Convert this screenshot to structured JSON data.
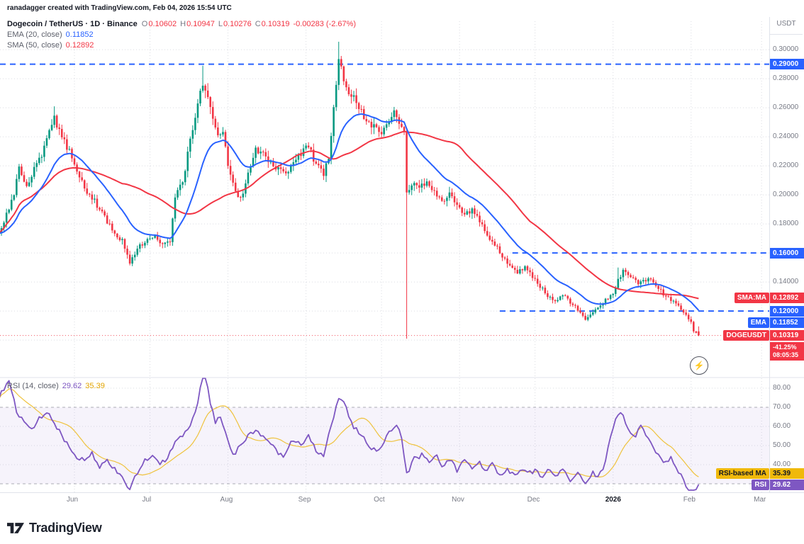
{
  "attribution": "ranadagger created with TradingView.com, Feb 04, 2026 15:54 UTC",
  "legend": {
    "title": "Dogecoin / TetherUS · 1D · Binance",
    "o_label": "O",
    "o": "0.10602",
    "h_label": "H",
    "h": "0.10947",
    "l_label": "L",
    "l": "0.10276",
    "c_label": "C",
    "c": "0.10319",
    "change": "-0.00283 (-2.67%)",
    "ema_label": "EMA (20, close)",
    "ema_value": "0.11852",
    "sma_label": "SMA (50, close)",
    "sma_value": "0.12892",
    "rsi_label": "RSI (14, close)",
    "rsi_value": "29.62",
    "rsi_ma_value": "35.39"
  },
  "axis": {
    "currency": "USDT",
    "price_ticks": [
      {
        "value": 0.3,
        "label": "0.30000"
      },
      {
        "value": 0.28,
        "label": "0.28000"
      },
      {
        "value": 0.26,
        "label": "0.26000"
      },
      {
        "value": 0.24,
        "label": "0.24000"
      },
      {
        "value": 0.22,
        "label": "0.22000"
      },
      {
        "value": 0.2,
        "label": "0.20000"
      },
      {
        "value": 0.18,
        "label": "0.18000"
      },
      {
        "value": 0.14,
        "label": "0.14000"
      }
    ],
    "rsi_ticks": [
      {
        "value": 80,
        "label": "80.00"
      },
      {
        "value": 70,
        "label": "70.00"
      },
      {
        "value": 60,
        "label": "60.00"
      },
      {
        "value": 50,
        "label": "50.00"
      },
      {
        "value": 40,
        "label": "40.00"
      }
    ],
    "badges": [
      {
        "label": "",
        "value": "0.29000",
        "price": 0.29,
        "color": "#2962FF"
      },
      {
        "label": "",
        "value": "0.16000",
        "price": 0.16,
        "color": "#2962FF"
      },
      {
        "label": "SMA:MA",
        "value": "0.12892",
        "price": 0.12892,
        "color": "#F23645"
      },
      {
        "label": "",
        "value": "0.12000",
        "price": 0.12,
        "color": "#2962FF"
      },
      {
        "label": "EMA",
        "value": "0.11852",
        "price": 0.11852,
        "color": "#2962FF"
      },
      {
        "label": "DOGEUSDT",
        "value": "0.10319",
        "price": 0.10319,
        "color": "#F23645"
      }
    ],
    "countdown": {
      "lines": [
        "-41.25%",
        "08:05:35"
      ],
      "color": "#F23645"
    },
    "rsi_badges": [
      {
        "label": "RSI-based MA",
        "value": "35.39",
        "rsi": 35.39,
        "color": "#F0B90B",
        "text": "#131722"
      },
      {
        "label": "RSI",
        "value": "29.62",
        "rsi": 29.62,
        "color": "#7E57C2",
        "text": "#ffffff"
      }
    ]
  },
  "time_axis": {
    "months": [
      {
        "label": "Jun",
        "day": 30
      },
      {
        "label": "Jul",
        "day": 60
      },
      {
        "label": "Aug",
        "day": 91
      },
      {
        "label": "Sep",
        "day": 122
      },
      {
        "label": "Oct",
        "day": 152
      },
      {
        "label": "Nov",
        "day": 183
      },
      {
        "label": "Dec",
        "day": 213
      },
      {
        "label": "2026",
        "day": 244,
        "emphasis": true
      },
      {
        "label": "Feb",
        "day": 275
      },
      {
        "label": "Mar",
        "day": 303
      }
    ]
  },
  "logo": {
    "text": "TradingView"
  },
  "quick_button": {
    "icon": "lightning-icon",
    "glyph": "⚡"
  },
  "colors": {
    "up": "#089981",
    "down": "#F23645",
    "ema": "#2962FF",
    "sma": "#F23645",
    "rsi": "#7E57C2",
    "rsi_ma": "#EFC23C",
    "level": "#2962FF",
    "grid": "#b6bac6",
    "band": "#7E57C2",
    "last_price": "#F23645"
  },
  "chart_data": {
    "type": "candlestick",
    "symbol": "DOGEUSDT",
    "exchange": "Binance",
    "timeframe": "1D",
    "title": "Dogecoin / TetherUS · 1D · Binance",
    "price_axis_range": [
      0.08,
      0.32
    ],
    "rsi_axis_range": [
      20,
      90
    ],
    "last": {
      "open": 0.10602,
      "high": 0.10947,
      "low": 0.10276,
      "close": 0.10319,
      "change": -0.00283,
      "change_pct": -2.67
    },
    "indicators": {
      "ema20": 0.11852,
      "sma50": 0.12892,
      "rsi14": 29.62,
      "rsi_based_ma": 35.39
    },
    "levels": [
      {
        "price": 0.29,
        "from_day": 0
      },
      {
        "price": 0.16,
        "from_day": 204
      },
      {
        "price": 0.12,
        "from_day": 199
      }
    ],
    "rsi_bands": [
      70,
      30
    ],
    "price_keyframes": [
      [
        0,
        0.172
      ],
      [
        3,
        0.186
      ],
      [
        6,
        0.2
      ],
      [
        8,
        0.218
      ],
      [
        11,
        0.206
      ],
      [
        14,
        0.218
      ],
      [
        17,
        0.228
      ],
      [
        20,
        0.246
      ],
      [
        22,
        0.253
      ],
      [
        25,
        0.24
      ],
      [
        28,
        0.23
      ],
      [
        31,
        0.218
      ],
      [
        34,
        0.204
      ],
      [
        37,
        0.198
      ],
      [
        41,
        0.188
      ],
      [
        45,
        0.176
      ],
      [
        49,
        0.168
      ],
      [
        52,
        0.154
      ],
      [
        55,
        0.163
      ],
      [
        58,
        0.168
      ],
      [
        62,
        0.172
      ],
      [
        65,
        0.166
      ],
      [
        68,
        0.168
      ],
      [
        70,
        0.199
      ],
      [
        73,
        0.209
      ],
      [
        76,
        0.238
      ],
      [
        79,
        0.262
      ],
      [
        81,
        0.277
      ],
      [
        83,
        0.266
      ],
      [
        85,
        0.252
      ],
      [
        87,
        0.239
      ],
      [
        89,
        0.245
      ],
      [
        91,
        0.221
      ],
      [
        94,
        0.201
      ],
      [
        96,
        0.197
      ],
      [
        99,
        0.214
      ],
      [
        102,
        0.231
      ],
      [
        105,
        0.228
      ],
      [
        108,
        0.222
      ],
      [
        111,
        0.218
      ],
      [
        114,
        0.214
      ],
      [
        117,
        0.224
      ],
      [
        120,
        0.229
      ],
      [
        123,
        0.233
      ],
      [
        126,
        0.221
      ],
      [
        129,
        0.214
      ],
      [
        131,
        0.226
      ],
      [
        133,
        0.258
      ],
      [
        135,
        0.292
      ],
      [
        137,
        0.281
      ],
      [
        139,
        0.272
      ],
      [
        141,
        0.266
      ],
      [
        144,
        0.257
      ],
      [
        147,
        0.25
      ],
      [
        150,
        0.246
      ],
      [
        152,
        0.244
      ],
      [
        155,
        0.25
      ],
      [
        157,
        0.257
      ],
      [
        159,
        0.251
      ],
      [
        161,
        0.246
      ],
      [
        162,
        0.2
      ],
      [
        164,
        0.208
      ],
      [
        167,
        0.204
      ],
      [
        170,
        0.21
      ],
      [
        173,
        0.202
      ],
      [
        176,
        0.196
      ],
      [
        179,
        0.2
      ],
      [
        182,
        0.194
      ],
      [
        185,
        0.186
      ],
      [
        188,
        0.19
      ],
      [
        191,
        0.181
      ],
      [
        194,
        0.172
      ],
      [
        197,
        0.166
      ],
      [
        200,
        0.158
      ],
      [
        203,
        0.151
      ],
      [
        206,
        0.146
      ],
      [
        209,
        0.151
      ],
      [
        212,
        0.143
      ],
      [
        215,
        0.137
      ],
      [
        218,
        0.131
      ],
      [
        221,
        0.127
      ],
      [
        224,
        0.131
      ],
      [
        227,
        0.126
      ],
      [
        230,
        0.121
      ],
      [
        233,
        0.114
      ],
      [
        236,
        0.119
      ],
      [
        239,
        0.124
      ],
      [
        242,
        0.129
      ],
      [
        244,
        0.133
      ],
      [
        246,
        0.141
      ],
      [
        248,
        0.147
      ],
      [
        251,
        0.144
      ],
      [
        254,
        0.139
      ],
      [
        257,
        0.141
      ],
      [
        259,
        0.143
      ],
      [
        261,
        0.137
      ],
      [
        264,
        0.132
      ],
      [
        266,
        0.129
      ],
      [
        268,
        0.127
      ],
      [
        270,
        0.124
      ],
      [
        272,
        0.12
      ],
      [
        274,
        0.115
      ],
      [
        275,
        0.112
      ],
      [
        276,
        0.107
      ],
      [
        277,
        0.105
      ],
      [
        278,
        0.10319
      ]
    ],
    "spikes": [
      {
        "day": 22,
        "high": 0.261
      },
      {
        "day": 81,
        "high": 0.289
      },
      {
        "day": 135,
        "high": 0.3055
      },
      {
        "day": 162,
        "low": 0.101
      },
      {
        "day": 246,
        "high": 0.15
      }
    ],
    "rsi_keyframes": [
      [
        0,
        75
      ],
      [
        2,
        80
      ],
      [
        4,
        85
      ],
      [
        7,
        68
      ],
      [
        10,
        62
      ],
      [
        13,
        58
      ],
      [
        16,
        64
      ],
      [
        19,
        68
      ],
      [
        22,
        62
      ],
      [
        25,
        55
      ],
      [
        28,
        49
      ],
      [
        31,
        44
      ],
      [
        34,
        42
      ],
      [
        37,
        46
      ],
      [
        40,
        39
      ],
      [
        43,
        42
      ],
      [
        46,
        38
      ],
      [
        49,
        33
      ],
      [
        52,
        27
      ],
      [
        55,
        36
      ],
      [
        58,
        42
      ],
      [
        61,
        45
      ],
      [
        64,
        41
      ],
      [
        67,
        43
      ],
      [
        70,
        53
      ],
      [
        73,
        55
      ],
      [
        76,
        61
      ],
      [
        79,
        72
      ],
      [
        81,
        87
      ],
      [
        82,
        88
      ],
      [
        84,
        72
      ],
      [
        86,
        62
      ],
      [
        88,
        66
      ],
      [
        90,
        57
      ],
      [
        93,
        45
      ],
      [
        96,
        50
      ],
      [
        99,
        55
      ],
      [
        102,
        58
      ],
      [
        105,
        54
      ],
      [
        108,
        51
      ],
      [
        111,
        46
      ],
      [
        113,
        44
      ],
      [
        115,
        50
      ],
      [
        117,
        53
      ],
      [
        120,
        50
      ],
      [
        123,
        55
      ],
      [
        126,
        47
      ],
      [
        129,
        44
      ],
      [
        131,
        56
      ],
      [
        134,
        70
      ],
      [
        135,
        75
      ],
      [
        137,
        72
      ],
      [
        139,
        66
      ],
      [
        141,
        60
      ],
      [
        144,
        55
      ],
      [
        147,
        50
      ],
      [
        150,
        47
      ],
      [
        153,
        52
      ],
      [
        155,
        57
      ],
      [
        158,
        60
      ],
      [
        160,
        55
      ],
      [
        162,
        35
      ],
      [
        165,
        43
      ],
      [
        168,
        45
      ],
      [
        171,
        41
      ],
      [
        174,
        45
      ],
      [
        176,
        39
      ],
      [
        179,
        43
      ],
      [
        182,
        37
      ],
      [
        185,
        42
      ],
      [
        188,
        38
      ],
      [
        191,
        41
      ],
      [
        193,
        36
      ],
      [
        196,
        40
      ],
      [
        199,
        34
      ],
      [
        202,
        38
      ],
      [
        205,
        34
      ],
      [
        208,
        38
      ],
      [
        210,
        35
      ],
      [
        213,
        37
      ],
      [
        216,
        33
      ],
      [
        219,
        38
      ],
      [
        221,
        34
      ],
      [
        224,
        37
      ],
      [
        227,
        32
      ],
      [
        230,
        36
      ],
      [
        233,
        30
      ],
      [
        236,
        36
      ],
      [
        238,
        33
      ],
      [
        241,
        41
      ],
      [
        243,
        55
      ],
      [
        245,
        64
      ],
      [
        247,
        68
      ],
      [
        249,
        62
      ],
      [
        251,
        57
      ],
      [
        253,
        55
      ],
      [
        255,
        60
      ],
      [
        257,
        56
      ],
      [
        259,
        52
      ],
      [
        261,
        46
      ],
      [
        263,
        43
      ],
      [
        265,
        41
      ],
      [
        267,
        44
      ],
      [
        269,
        38
      ],
      [
        271,
        35
      ],
      [
        273,
        29
      ],
      [
        275,
        26
      ],
      [
        276,
        24
      ],
      [
        277,
        27
      ],
      [
        278,
        29.62
      ]
    ]
  }
}
